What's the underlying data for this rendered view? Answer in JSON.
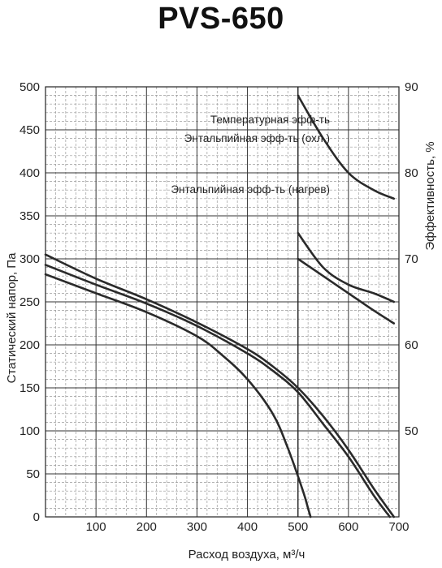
{
  "chart_data": {
    "type": "line",
    "title": "PVS-650",
    "xlabel": "Расход воздуха, м³/ч",
    "ylabel": "Статический напор, Па",
    "y2label": "Эффективность, %",
    "xlim": [
      0,
      700
    ],
    "ylim": [
      0,
      500
    ],
    "y2lim": [
      40,
      90
    ],
    "x_ticks": [
      100,
      200,
      300,
      400,
      500,
      600,
      700
    ],
    "y_ticks": [
      0,
      50,
      100,
      150,
      200,
      250,
      300,
      350,
      400,
      450,
      500
    ],
    "y2_ticks": [
      50,
      60,
      70,
      80,
      90
    ],
    "grid": true,
    "pressure_curves": [
      {
        "points": [
          [
            0,
            282
          ],
          [
            100,
            260
          ],
          [
            200,
            238
          ],
          [
            300,
            210
          ],
          [
            350,
            188
          ],
          [
            400,
            160
          ],
          [
            450,
            120
          ],
          [
            480,
            80
          ],
          [
            510,
            30
          ],
          [
            520,
            10
          ],
          [
            525,
            0
          ]
        ]
      },
      {
        "points": [
          [
            0,
            293
          ],
          [
            100,
            270
          ],
          [
            200,
            248
          ],
          [
            300,
            222
          ],
          [
            400,
            190
          ],
          [
            450,
            170
          ],
          [
            500,
            145
          ],
          [
            550,
            108
          ],
          [
            600,
            70
          ],
          [
            650,
            25
          ],
          [
            682,
            0
          ]
        ]
      },
      {
        "points": [
          [
            0,
            305
          ],
          [
            100,
            277
          ],
          [
            200,
            253
          ],
          [
            300,
            226
          ],
          [
            400,
            195
          ],
          [
            450,
            175
          ],
          [
            500,
            150
          ],
          [
            550,
            117
          ],
          [
            600,
            78
          ],
          [
            650,
            33
          ],
          [
            690,
            0
          ]
        ]
      }
    ],
    "efficiency_curves": [
      {
        "label": "Температурная эфф-ть",
        "points": [
          [
            500,
            89
          ],
          [
            550,
            84
          ],
          [
            600,
            80
          ],
          [
            650,
            78
          ],
          [
            690,
            77
          ]
        ]
      },
      {
        "label": "Энтальпийная эфф-ть (охл.)",
        "points": [
          [
            500,
            73
          ],
          [
            550,
            69
          ],
          [
            600,
            67
          ],
          [
            650,
            66
          ],
          [
            690,
            65
          ]
        ]
      },
      {
        "label": "Энтальпийная эфф-ть (нагрев)",
        "points": [
          [
            500,
            70
          ],
          [
            550,
            68
          ],
          [
            600,
            66
          ],
          [
            650,
            64
          ],
          [
            690,
            62.5
          ]
        ]
      }
    ]
  }
}
